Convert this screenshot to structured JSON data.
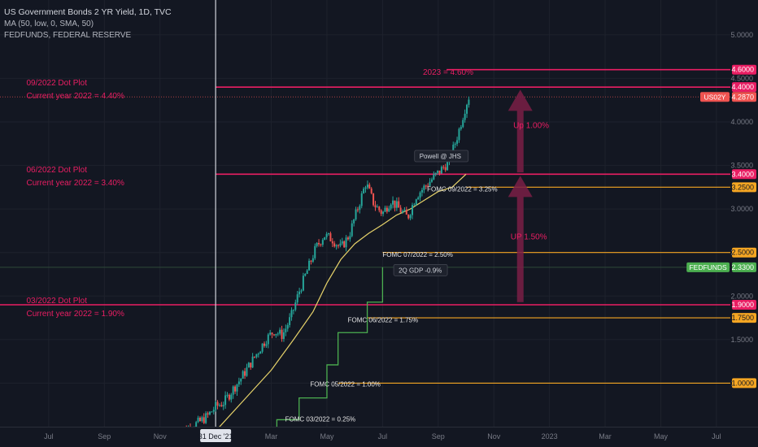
{
  "header": {
    "title": "US Government Bonds 2 YR Yield, 1D, TVC",
    "indicator": "MA (50, low, 0, SMA, 50)",
    "overlay": "FEDFUNDS, FEDERAL RESERVE"
  },
  "colors": {
    "background": "#131722",
    "grid": "#1e222d",
    "up": "#26a69a",
    "down": "#ef5350",
    "ma": "#e6d26a",
    "pink": "#e91e63",
    "orange": "#f5a623",
    "fedfunds": "#4caf50",
    "arrow": "#7a1f45"
  },
  "chart_data": {
    "type": "line",
    "y_ticks": [
      "5.0000",
      "4.5000",
      "4.0000",
      "3.5000",
      "3.0000",
      "2.5000",
      "2.0000",
      "1.5000",
      "1.0000"
    ],
    "x_ticks": [
      "Jul",
      "Sep",
      "Nov",
      "31 Dec '21",
      "Mar",
      "May",
      "Jul",
      "Sep",
      "Nov",
      "2023",
      "Mar",
      "May",
      "Jul"
    ],
    "x_tick_values": [
      -6,
      -4,
      -2,
      0,
      2,
      4,
      6,
      8,
      10,
      12,
      14,
      16,
      18
    ],
    "ylim": [
      0.5,
      5.4
    ],
    "xlim": [
      -7.75,
      18.5
    ],
    "vertical_marker_x": 0,
    "price_series": {
      "name": "US02Y",
      "months": [
        -1.4,
        -1.0,
        -0.6,
        -0.3,
        0.0,
        0.3,
        0.6,
        0.9,
        1.2,
        1.5,
        1.8,
        2.1,
        2.4,
        2.7,
        3.0,
        3.3,
        3.6,
        3.9,
        4.2,
        4.5,
        4.8,
        5.1,
        5.4,
        5.7,
        6.0,
        6.3,
        6.6,
        6.9,
        7.2,
        7.5,
        7.8,
        8.1,
        8.4,
        8.7,
        9.0,
        9.1
      ],
      "close": [
        0.42,
        0.48,
        0.55,
        0.62,
        0.73,
        0.78,
        0.92,
        1.05,
        1.2,
        1.35,
        1.5,
        1.6,
        1.55,
        1.75,
        2.05,
        2.3,
        2.55,
        2.7,
        2.65,
        2.55,
        2.7,
        3.0,
        3.3,
        3.05,
        2.95,
        3.1,
        3.0,
        2.9,
        3.15,
        3.25,
        3.35,
        3.45,
        3.55,
        3.85,
        4.2,
        4.287
      ]
    },
    "ma_series": {
      "months": [
        -1.0,
        0.0,
        1.0,
        2.0,
        2.8,
        3.5,
        4.0,
        4.5,
        5.0,
        5.5,
        6.0,
        6.5,
        7.0,
        7.5,
        8.0,
        8.5,
        9.0
      ],
      "values": [
        0.28,
        0.45,
        0.8,
        1.15,
        1.5,
        1.82,
        2.15,
        2.42,
        2.6,
        2.72,
        2.82,
        2.93,
        3.0,
        3.1,
        3.2,
        3.25,
        3.4
      ]
    },
    "fedfunds_series": {
      "months": [
        1.3,
        2.2,
        2.2,
        3.0,
        3.0,
        4.0,
        4.0,
        4.4,
        4.4,
        5.0,
        5.0,
        5.45,
        5.45,
        6.0,
        6.0
      ],
      "values": [
        0.33,
        0.33,
        0.58,
        0.58,
        0.83,
        0.83,
        1.21,
        1.21,
        1.58,
        1.58,
        1.58,
        1.58,
        1.93,
        1.93,
        2.33
      ]
    },
    "horizontal_lines": [
      {
        "value": 4.6,
        "label": "4.6000",
        "color": "pink",
        "x_start": 8.3
      },
      {
        "value": 4.4,
        "label": "4.4000",
        "color": "pink",
        "x_start": 0
      },
      {
        "value": 3.4,
        "label": "3.4000",
        "color": "pink",
        "x_start": 0
      },
      {
        "value": 3.25,
        "label": "3.2500",
        "color": "orange",
        "x_start": 9.0
      },
      {
        "value": 2.5,
        "label": "2.5000",
        "color": "orange",
        "x_start": 6.0
      },
      {
        "value": 1.9,
        "label": "1.9000",
        "color": "pink",
        "x_start": -7.75
      },
      {
        "value": 1.75,
        "label": "1.7500",
        "color": "orange",
        "x_start": 5.45
      },
      {
        "value": 1.0,
        "label": "1.0000",
        "color": "orange",
        "x_start": 4.4
      }
    ],
    "price_labels": [
      {
        "name": "US02Y",
        "value": 4.287,
        "label": "4.2870",
        "color": "down"
      },
      {
        "name": "FEDFUNDS",
        "value": 2.33,
        "label": "2.3300",
        "color": "fedfunds"
      }
    ],
    "annotations": [
      {
        "text": "09/2022 Dot Plot",
        "x": -6.8,
        "y": 4.42,
        "color": "pink"
      },
      {
        "text": "Current year 2022 = 4.40%",
        "x": -6.8,
        "y": 4.27,
        "color": "pink"
      },
      {
        "text": "06/2022 Dot Plot",
        "x": -6.8,
        "y": 3.42,
        "color": "pink"
      },
      {
        "text": "Current year 2022 = 3.40%",
        "x": -6.8,
        "y": 3.27,
        "color": "pink"
      },
      {
        "text": "03/2022 Dot Plot",
        "x": -6.8,
        "y": 1.92,
        "color": "pink"
      },
      {
        "text": "Current year 2022 = 1.90%",
        "x": -6.8,
        "y": 1.77,
        "color": "pink"
      },
      {
        "text": "2023 = 4.60%",
        "x": 7.45,
        "y": 4.54,
        "color": "pink"
      },
      {
        "text": "Up 1.00%",
        "x": 10.7,
        "y": 3.93,
        "color": "pink"
      },
      {
        "text": "UP 1.50%",
        "x": 10.6,
        "y": 2.65,
        "color": "pink"
      },
      {
        "text": "FOMC 09/2022 = 3.25%",
        "x": 7.6,
        "y": 3.2,
        "color": "white"
      },
      {
        "text": "FOMC 07/2022 = 2.50%",
        "x": 6.0,
        "y": 2.45,
        "color": "white"
      },
      {
        "text": "FOMC 06/2022 = 1.75%",
        "x": 4.75,
        "y": 1.7,
        "color": "white"
      },
      {
        "text": "FOMC 05/2022 = 1.00%",
        "x": 3.4,
        "y": 0.96,
        "color": "white"
      },
      {
        "text": "FOMC 03/2022 = 0.25%",
        "x": 2.5,
        "y": 0.56,
        "color": "white"
      }
    ],
    "callouts": [
      {
        "text": "Powell @ JHS",
        "x": 7.15,
        "y": 3.58
      },
      {
        "text": "2Q GDP -0.9%",
        "x": 6.4,
        "y": 2.27
      }
    ],
    "arrows": [
      {
        "x": 10.95,
        "from": 3.42,
        "to": 4.37
      },
      {
        "x": 10.95,
        "from": 1.93,
        "to": 3.38
      }
    ]
  }
}
